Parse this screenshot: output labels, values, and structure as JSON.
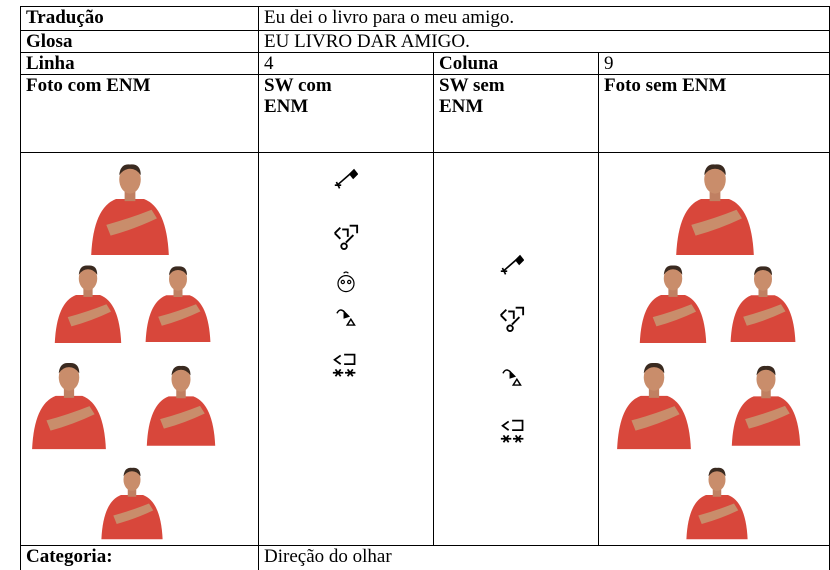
{
  "table": {
    "rows": [
      [
        "Tradução",
        "Eu dei o livro para o meu amigo."
      ],
      [
        "Glosa",
        "EU LIVRO DAR AMIGO."
      ],
      [
        "Linha",
        "4",
        "Coluna",
        "9"
      ],
      [
        "Foto com ENM",
        "SW com ENM",
        "SW sem ENM",
        "Foto sem ENM"
      ],
      [
        "Categoria:",
        "Direção do olhar"
      ]
    ]
  }
}
